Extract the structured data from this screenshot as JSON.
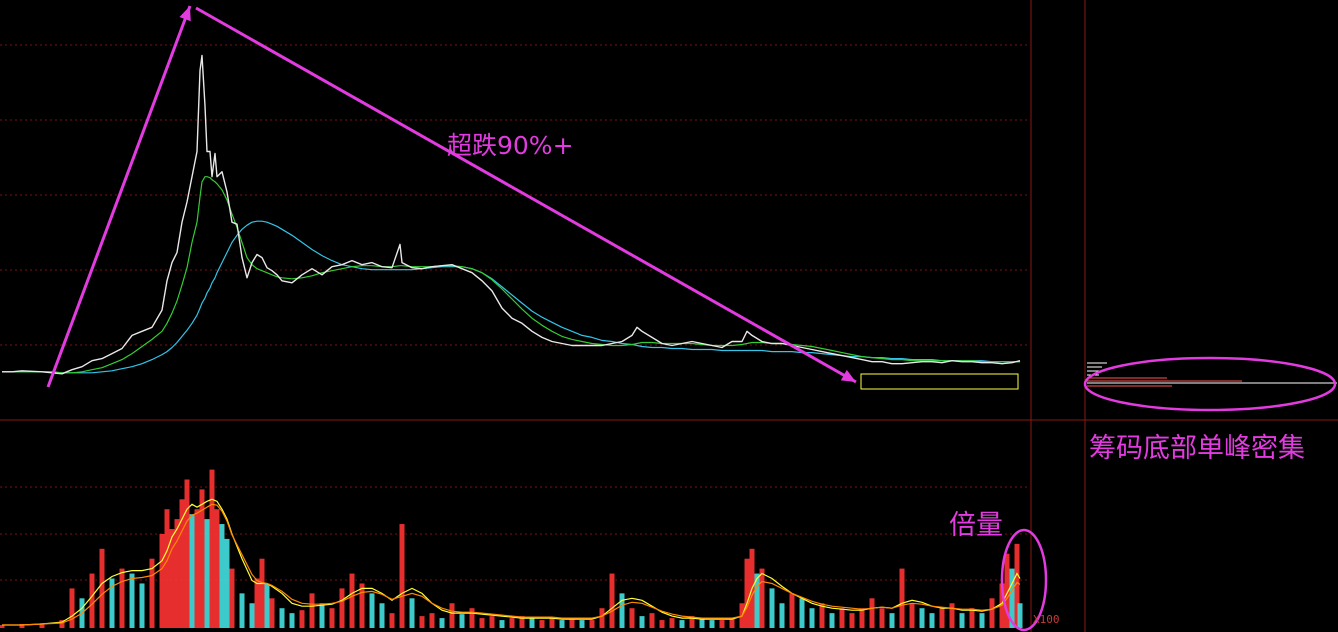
{
  "annotations": {
    "crash_text": "超跌90%+",
    "chip_text": "筹码底部单峰密集",
    "volume_text": "倍量",
    "volume_scale_label": "X100"
  },
  "colors": {
    "background": "#000000",
    "grid": "#7a1010",
    "frame": "#8a1818",
    "annotation": "#e23be0",
    "price_line": "#e8e8e8",
    "ma_short": "#33cc33",
    "ma_long": "#33c4e8",
    "vol_up": "#ff3333",
    "vol_down": "#44e0e0",
    "vol_ma_a": "#ffff33",
    "vol_ma_b": "#ff8800",
    "consolidation_box": "#ffff44",
    "chip_up": "#ff5555",
    "chip_last": "#ffffff"
  },
  "chart_data": [
    {
      "type": "line",
      "panel": "price",
      "x": [
        0,
        10,
        20,
        40,
        50,
        60,
        70,
        80,
        90,
        100,
        110,
        120,
        130,
        140,
        150,
        160,
        165,
        170,
        175,
        180,
        185,
        190,
        195,
        198,
        200,
        203,
        205,
        208,
        210,
        213,
        215,
        220,
        225,
        230,
        235,
        240,
        245,
        250,
        255,
        260,
        265,
        270,
        275,
        280,
        290,
        300,
        310,
        320,
        330,
        340,
        350,
        360,
        370,
        380,
        390,
        398,
        400,
        410,
        420,
        430,
        440,
        450,
        460,
        470,
        480,
        490,
        500,
        510,
        520,
        530,
        540,
        550,
        560,
        570,
        580,
        590,
        600,
        610,
        620,
        630,
        635,
        640,
        650,
        660,
        670,
        680,
        690,
        700,
        710,
        720,
        730,
        740,
        745,
        750,
        760,
        770,
        780,
        790,
        800,
        810,
        820,
        830,
        840,
        850,
        860,
        870,
        880,
        890,
        900,
        910,
        920,
        930,
        940,
        950,
        960,
        970,
        980,
        990,
        1000,
        1010,
        1018
      ],
      "series": [
        {
          "name": "",
          "values": [
            22,
            22,
            23,
            22,
            21,
            20,
            24,
            27,
            33,
            35,
            40,
            45,
            58,
            62,
            66,
            83,
            112,
            130,
            140,
            170,
            190,
            215,
            240,
            320,
            335,
            285,
            240,
            240,
            215,
            238,
            215,
            220,
            200,
            170,
            168,
            135,
            115,
            130,
            138,
            135,
            125,
            122,
            118,
            112,
            110,
            118,
            124,
            118,
            126,
            128,
            132,
            128,
            130,
            126,
            125,
            148,
            130,
            125,
            124,
            126,
            127,
            128,
            124,
            120,
            112,
            102,
            85,
            75,
            70,
            62,
            56,
            52,
            50,
            48,
            48,
            48,
            48,
            50,
            52,
            58,
            66,
            62,
            56,
            50,
            48,
            50,
            52,
            50,
            48,
            46,
            52,
            52,
            62,
            58,
            52,
            50,
            50,
            48,
            46,
            44,
            42,
            40,
            38,
            36,
            34,
            32,
            32,
            30,
            30,
            31,
            32,
            32,
            31,
            33,
            32,
            32,
            31,
            31,
            30,
            31,
            33
          ]
        },
        {
          "name": "",
          "values": [
            22,
            22,
            22,
            22,
            22,
            21,
            21,
            22,
            24,
            26,
            30,
            34,
            40,
            47,
            54,
            62,
            70,
            80,
            92,
            108,
            125,
            150,
            170,
            195,
            210,
            215,
            215,
            214,
            212,
            210,
            208,
            202,
            192,
            178,
            165,
            150,
            135,
            128,
            124,
            122,
            120,
            118,
            116,
            115,
            114,
            115,
            117,
            120,
            122,
            124,
            126,
            127,
            127,
            126,
            126,
            127,
            127,
            126,
            126,
            126,
            127,
            127,
            126,
            124,
            120,
            113,
            104,
            94,
            84,
            75,
            68,
            62,
            57,
            54,
            52,
            50,
            49,
            48,
            48,
            49,
            50,
            51,
            51,
            50,
            50,
            50,
            50,
            49,
            48,
            48,
            48,
            49,
            50,
            51,
            51,
            50,
            50,
            49,
            48,
            47,
            45,
            43,
            41,
            39,
            37,
            36,
            35,
            34,
            34,
            33,
            33,
            33,
            33,
            33,
            33,
            33,
            32,
            32,
            32,
            32,
            32
          ]
        },
        {
          "name": "",
          "values": [
            22,
            22,
            22,
            22,
            22,
            21,
            21,
            21,
            21,
            22,
            23,
            25,
            27,
            30,
            34,
            39,
            42,
            46,
            51,
            57,
            63,
            70,
            78,
            85,
            90,
            95,
            100,
            105,
            110,
            115,
            120,
            130,
            140,
            150,
            157,
            163,
            167,
            170,
            171,
            171,
            170,
            168,
            166,
            163,
            157,
            150,
            143,
            137,
            132,
            128,
            126,
            124,
            123,
            123,
            123,
            123,
            123,
            123,
            124,
            125,
            126,
            126,
            126,
            124,
            120,
            114,
            106,
            98,
            90,
            82,
            76,
            71,
            66,
            62,
            58,
            56,
            53,
            52,
            50,
            49,
            48,
            47,
            46,
            46,
            45,
            45,
            44,
            44,
            44,
            43,
            43,
            43,
            43,
            43,
            43,
            42,
            42,
            42,
            41,
            41,
            40,
            39,
            38,
            37,
            37,
            36,
            36,
            35,
            35,
            34,
            34,
            34,
            33,
            33,
            33,
            33,
            33,
            32,
            32,
            32,
            32
          ]
        }
      ],
      "ylim": [
        0,
        380
      ],
      "grid": true
    },
    {
      "type": "bar",
      "panel": "volume",
      "x": [
        0,
        20,
        40,
        60,
        70,
        80,
        90,
        100,
        110,
        120,
        130,
        140,
        150,
        160,
        165,
        170,
        175,
        180,
        185,
        190,
        195,
        200,
        205,
        210,
        215,
        220,
        225,
        230,
        240,
        250,
        255,
        260,
        265,
        270,
        280,
        290,
        300,
        310,
        320,
        330,
        340,
        350,
        360,
        370,
        380,
        390,
        400,
        410,
        420,
        430,
        440,
        450,
        460,
        470,
        480,
        490,
        500,
        510,
        520,
        530,
        540,
        550,
        560,
        570,
        580,
        590,
        600,
        610,
        620,
        630,
        640,
        650,
        660,
        670,
        680,
        690,
        700,
        710,
        720,
        730,
        740,
        745,
        750,
        755,
        760,
        770,
        780,
        790,
        800,
        810,
        820,
        830,
        840,
        850,
        860,
        870,
        880,
        890,
        900,
        910,
        920,
        930,
        940,
        950,
        960,
        970,
        980,
        990,
        1000,
        1005,
        1010,
        1015,
        1018
      ],
      "values": [
        3,
        4,
        5,
        8,
        40,
        30,
        55,
        80,
        50,
        60,
        55,
        45,
        70,
        95,
        120,
        100,
        110,
        130,
        150,
        115,
        120,
        140,
        110,
        160,
        120,
        105,
        90,
        60,
        35,
        25,
        50,
        70,
        45,
        30,
        20,
        15,
        18,
        35,
        25,
        20,
        40,
        55,
        45,
        35,
        25,
        15,
        105,
        30,
        12,
        15,
        10,
        25,
        14,
        20,
        10,
        12,
        8,
        10,
        12,
        10,
        8,
        10,
        8,
        10,
        8,
        8,
        20,
        55,
        35,
        20,
        12,
        15,
        8,
        10,
        8,
        12,
        10,
        8,
        8,
        10,
        25,
        70,
        80,
        55,
        60,
        40,
        25,
        35,
        30,
        20,
        25,
        15,
        20,
        15,
        20,
        30,
        20,
        15,
        60,
        25,
        20,
        15,
        20,
        25,
        15,
        20,
        15,
        30,
        45,
        75,
        60,
        85,
        25
      ],
      "vol_ma_a": [
        3,
        3,
        4,
        6,
        12,
        20,
        32,
        45,
        52,
        56,
        58,
        58,
        60,
        68,
        78,
        92,
        100,
        110,
        120,
        125,
        122,
        125,
        128,
        130,
        128,
        120,
        110,
        95,
        70,
        48,
        45,
        45,
        45,
        42,
        35,
        25,
        22,
        22,
        23,
        24,
        28,
        35,
        40,
        40,
        35,
        28,
        35,
        40,
        35,
        25,
        18,
        15,
        15,
        15,
        14,
        13,
        12,
        11,
        10,
        10,
        10,
        10,
        9,
        9,
        9,
        9,
        12,
        20,
        28,
        30,
        28,
        22,
        16,
        12,
        10,
        10,
        9,
        9,
        9,
        9,
        12,
        25,
        40,
        50,
        55,
        50,
        42,
        35,
        30,
        25,
        22,
        20,
        19,
        18,
        18,
        20,
        21,
        20,
        25,
        28,
        26,
        22,
        20,
        20,
        18,
        18,
        17,
        19,
        25,
        35,
        45,
        55,
        50
      ],
      "vol_ma_b": [
        3,
        3,
        4,
        5,
        9,
        15,
        24,
        34,
        42,
        47,
        50,
        51,
        53,
        60,
        68,
        80,
        88,
        98,
        108,
        114,
        116,
        119,
        122,
        125,
        124,
        118,
        108,
        94,
        74,
        54,
        48,
        46,
        45,
        43,
        37,
        29,
        25,
        24,
        24,
        25,
        27,
        32,
        36,
        37,
        34,
        29,
        32,
        35,
        32,
        25,
        20,
        17,
        16,
        16,
        15,
        14,
        13,
        12,
        11,
        11,
        11,
        11,
        10,
        10,
        10,
        10,
        12,
        17,
        23,
        26,
        25,
        21,
        17,
        14,
        12,
        11,
        10,
        10,
        10,
        10,
        12,
        21,
        33,
        42,
        47,
        45,
        40,
        35,
        31,
        27,
        24,
        22,
        21,
        20,
        19,
        20,
        21,
        20,
        23,
        25,
        24,
        22,
        21,
        20,
        19,
        19,
        18,
        19,
        23,
        30,
        38,
        46,
        44
      ],
      "ylim": [
        0,
        200
      ],
      "grid": true
    }
  ]
}
